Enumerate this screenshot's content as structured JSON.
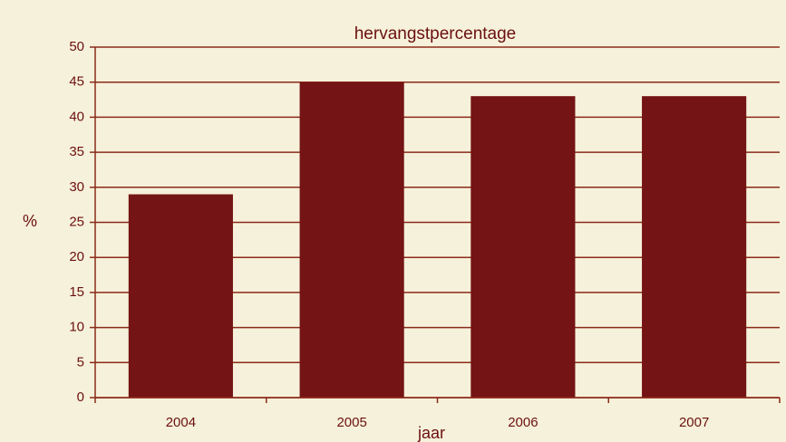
{
  "chart_data": {
    "type": "bar",
    "title": "hervangstpercentage",
    "x_label": "jaar",
    "y_label": "%",
    "categories": [
      "2004",
      "2005",
      "2006",
      "2007"
    ],
    "values": [
      29,
      45,
      43,
      43
    ],
    "color": "#741414",
    "ylim": [
      0,
      50
    ],
    "yticks": [
      0,
      5,
      10,
      15,
      20,
      25,
      30,
      35,
      40,
      45,
      50
    ],
    "grid": true
  }
}
